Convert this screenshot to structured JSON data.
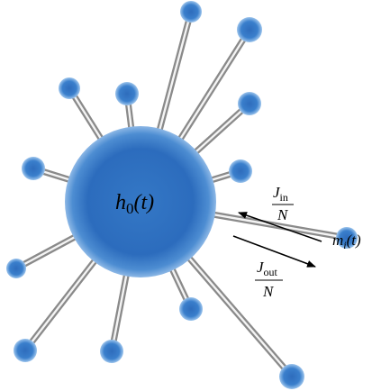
{
  "hub": {
    "symbol": "h",
    "subscript": "0",
    "argument": "(t)"
  },
  "node": {
    "symbol": "m",
    "subscript": "i",
    "argument": "(t)"
  },
  "flux_in": {
    "symbol": "J",
    "subscript": "in",
    "denominator": "N"
  },
  "flux_out": {
    "symbol": "J",
    "subscript": "out",
    "denominator": "N"
  }
}
